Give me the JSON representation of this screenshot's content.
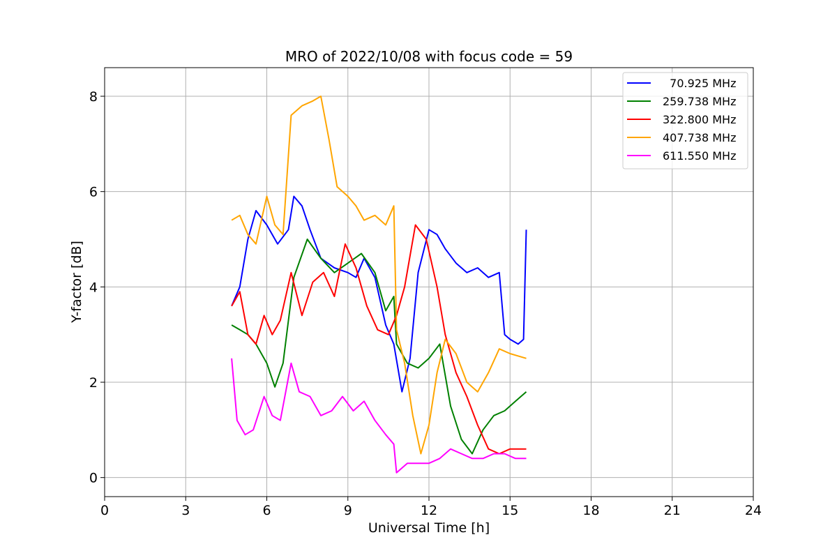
{
  "chart_data": {
    "type": "line",
    "title": "MRO of 2022/10/08 with focus code = 59",
    "xlabel": "Universal Time [h]",
    "ylabel": "Y-factor [dB]",
    "xlim": [
      0,
      24
    ],
    "ylim": [
      -0.4,
      8.6
    ],
    "x_ticks": [
      0,
      3,
      6,
      9,
      12,
      15,
      18,
      21,
      24
    ],
    "x_tick_labels": [
      "0",
      "3",
      "6",
      "9",
      "12",
      "15",
      "18",
      "21",
      "24"
    ],
    "y_ticks": [
      0,
      2,
      4,
      6,
      8
    ],
    "y_tick_labels": [
      "0",
      "2",
      "4",
      "6",
      "8"
    ],
    "grid": true,
    "legend_position": "top-right",
    "series": [
      {
        "name": "  70.925 MHz",
        "color": "#0000ff",
        "x": [
          4.7,
          5.0,
          5.3,
          5.6,
          6.0,
          6.4,
          6.8,
          7.0,
          7.3,
          7.6,
          8.0,
          8.5,
          9.0,
          9.3,
          9.6,
          10.0,
          10.4,
          10.7,
          11.0,
          11.3,
          11.6,
          12.0,
          12.3,
          12.6,
          13.0,
          13.4,
          13.8,
          14.2,
          14.6,
          14.8,
          15.0,
          15.3,
          15.5,
          15.6
        ],
        "y": [
          3.6,
          4.0,
          5.0,
          5.6,
          5.3,
          4.9,
          5.2,
          5.9,
          5.7,
          5.2,
          4.6,
          4.4,
          4.3,
          4.2,
          4.6,
          4.2,
          3.2,
          2.8,
          1.8,
          2.5,
          4.3,
          5.2,
          5.1,
          4.8,
          4.5,
          4.3,
          4.4,
          4.2,
          4.3,
          3.0,
          2.9,
          2.8,
          2.9,
          5.2
        ]
      },
      {
        "name": "259.738 MHz",
        "color": "#008000",
        "x": [
          4.7,
          5.0,
          5.3,
          5.6,
          6.0,
          6.3,
          6.6,
          7.0,
          7.5,
          8.0,
          8.5,
          9.0,
          9.5,
          10.0,
          10.4,
          10.7,
          10.8,
          11.2,
          11.6,
          12.0,
          12.4,
          12.8,
          13.2,
          13.6,
          14.0,
          14.4,
          14.8,
          15.2,
          15.6
        ],
        "y": [
          3.2,
          3.1,
          3.0,
          2.8,
          2.4,
          1.9,
          2.4,
          4.2,
          5.0,
          4.6,
          4.3,
          4.5,
          4.7,
          4.3,
          3.5,
          3.8,
          2.8,
          2.4,
          2.3,
          2.5,
          2.8,
          1.5,
          0.8,
          0.5,
          1.0,
          1.3,
          1.4,
          1.6,
          1.8
        ]
      },
      {
        "name": "322.800 MHz",
        "color": "#ff0000",
        "x": [
          4.7,
          5.0,
          5.3,
          5.6,
          5.9,
          6.2,
          6.5,
          6.9,
          7.3,
          7.7,
          8.1,
          8.5,
          8.9,
          9.3,
          9.7,
          10.1,
          10.5,
          10.8,
          11.1,
          11.5,
          11.9,
          12.3,
          12.6,
          13.0,
          13.4,
          13.8,
          14.2,
          14.6,
          15.0,
          15.6
        ],
        "y": [
          3.6,
          3.9,
          3.0,
          2.8,
          3.4,
          3.0,
          3.3,
          4.3,
          3.4,
          4.1,
          4.3,
          3.8,
          4.9,
          4.4,
          3.6,
          3.1,
          3.0,
          3.4,
          4.0,
          5.3,
          5.0,
          4.0,
          3.0,
          2.2,
          1.7,
          1.1,
          0.6,
          0.5,
          0.6,
          0.6
        ]
      },
      {
        "name": "407.738 MHz",
        "color": "#ffa500",
        "x": [
          4.7,
          5.0,
          5.3,
          5.6,
          6.0,
          6.3,
          6.6,
          6.9,
          7.3,
          7.7,
          8.0,
          8.3,
          8.6,
          9.0,
          9.3,
          9.6,
          10.0,
          10.4,
          10.7,
          10.8,
          11.1,
          11.4,
          11.7,
          12.0,
          12.3,
          12.6,
          13.0,
          13.4,
          13.8,
          14.2,
          14.6,
          15.0,
          15.6
        ],
        "y": [
          5.4,
          5.5,
          5.1,
          4.9,
          5.9,
          5.3,
          5.1,
          7.6,
          7.8,
          7.9,
          8.0,
          7.1,
          6.1,
          5.9,
          5.7,
          5.4,
          5.5,
          5.3,
          5.7,
          3.1,
          2.4,
          1.3,
          0.5,
          1.1,
          2.2,
          2.9,
          2.6,
          2.0,
          1.8,
          2.2,
          2.7,
          2.6,
          2.5
        ]
      },
      {
        "name": "611.550 MHz",
        "color": "#ff00ff",
        "x": [
          4.7,
          4.9,
          5.2,
          5.5,
          5.9,
          6.2,
          6.5,
          6.9,
          7.2,
          7.6,
          8.0,
          8.4,
          8.8,
          9.2,
          9.6,
          10.0,
          10.4,
          10.7,
          10.8,
          11.2,
          11.6,
          12.0,
          12.4,
          12.8,
          13.2,
          13.6,
          14.0,
          14.4,
          14.8,
          15.2,
          15.6
        ],
        "y": [
          2.5,
          1.2,
          0.9,
          1.0,
          1.7,
          1.3,
          1.2,
          2.4,
          1.8,
          1.7,
          1.3,
          1.4,
          1.7,
          1.4,
          1.6,
          1.2,
          0.9,
          0.7,
          0.1,
          0.3,
          0.3,
          0.3,
          0.4,
          0.6,
          0.5,
          0.4,
          0.4,
          0.5,
          0.5,
          0.4,
          0.4
        ]
      }
    ]
  }
}
